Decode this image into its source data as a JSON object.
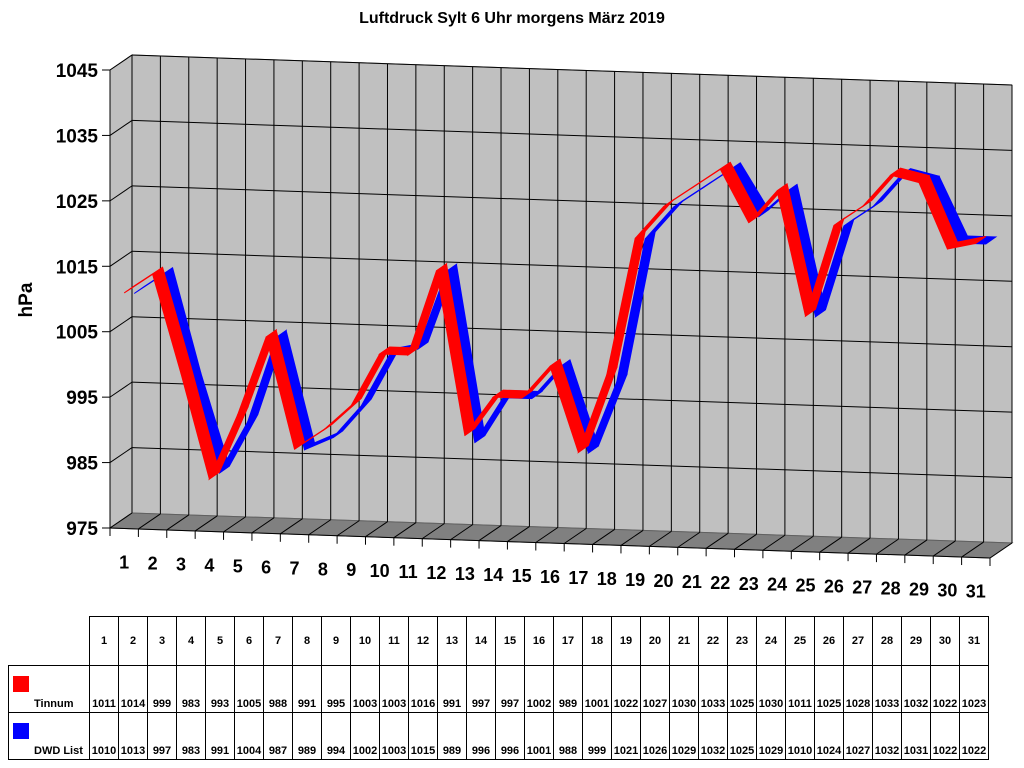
{
  "chart_data": {
    "type": "line",
    "title": "Luftdruck Sylt 6 Uhr morgens März 2019",
    "xlabel": "",
    "ylabel": "hPa",
    "ylim": [
      975,
      1045
    ],
    "yticks": [
      975,
      985,
      995,
      1005,
      1015,
      1025,
      1035,
      1045
    ],
    "grid": true,
    "style": "3d-ribbon",
    "legend_position": "bottom-table",
    "categories": [
      "1",
      "2",
      "3",
      "4",
      "5",
      "6",
      "7",
      "8",
      "9",
      "10",
      "11",
      "12",
      "13",
      "14",
      "15",
      "16",
      "17",
      "18",
      "19",
      "20",
      "21",
      "22",
      "23",
      "24",
      "25",
      "26",
      "27",
      "28",
      "29",
      "30",
      "31"
    ],
    "series": [
      {
        "name": "Tinnum",
        "color": "#ff0000",
        "values": [
          1011,
          1014,
          999,
          983,
          993,
          1005,
          988,
          991,
          995,
          1003,
          1003,
          1016,
          991,
          997,
          997,
          1002,
          989,
          1001,
          1022,
          1027,
          1030,
          1033,
          1025,
          1030,
          1011,
          1025,
          1028,
          1033,
          1032,
          1022,
          1023
        ]
      },
      {
        "name": "DWD List",
        "color": "#0000ff",
        "values": [
          1010,
          1013,
          997,
          983,
          991,
          1004,
          987,
          989,
          994,
          1002,
          1003,
          1015,
          989,
          996,
          996,
          1001,
          988,
          999,
          1021,
          1026,
          1029,
          1032,
          1025,
          1029,
          1010,
          1024,
          1027,
          1032,
          1031,
          1022,
          1022
        ]
      }
    ]
  },
  "colors": {
    "back_wall": "#c0c0c0",
    "side_wall": "#c0c0c0",
    "floor": "#808080",
    "grid": "#000000"
  }
}
